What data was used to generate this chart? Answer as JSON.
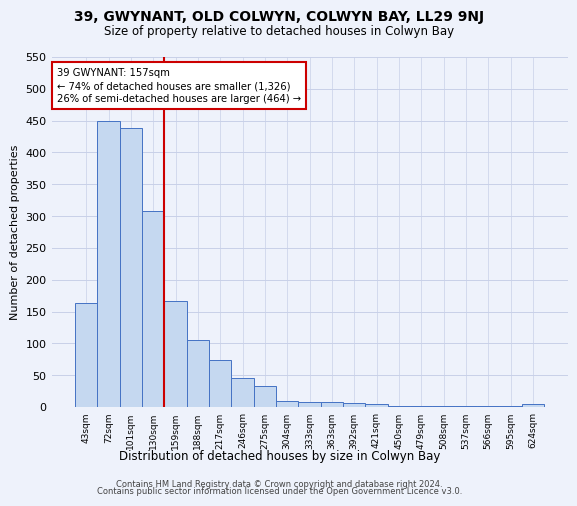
{
  "title": "39, GWYNANT, OLD COLWYN, COLWYN BAY, LL29 9NJ",
  "subtitle": "Size of property relative to detached houses in Colwyn Bay",
  "xlabel": "Distribution of detached houses by size in Colwyn Bay",
  "ylabel": "Number of detached properties",
  "footer_line1": "Contains HM Land Registry data © Crown copyright and database right 2024.",
  "footer_line2": "Contains public sector information licensed under the Open Government Licence v3.0.",
  "categories": [
    "43sqm",
    "72sqm",
    "101sqm",
    "130sqm",
    "159sqm",
    "188sqm",
    "217sqm",
    "246sqm",
    "275sqm",
    "304sqm",
    "333sqm",
    "363sqm",
    "392sqm",
    "421sqm",
    "450sqm",
    "479sqm",
    "508sqm",
    "537sqm",
    "566sqm",
    "595sqm",
    "624sqm"
  ],
  "values": [
    163,
    450,
    438,
    308,
    167,
    106,
    74,
    45,
    33,
    10,
    8,
    8,
    6,
    4,
    2,
    2,
    2,
    2,
    1,
    1,
    5
  ],
  "bar_color": "#c5d8f0",
  "bar_edge_color": "#4472c4",
  "background_color": "#eef2fb",
  "grid_color": "#c8d0e8",
  "vline_color": "#cc0000",
  "vline_x_index": 3.5,
  "annotation_text_line1": "39 GWYNANT: 157sqm",
  "annotation_text_line2": "← 74% of detached houses are smaller (1,326)",
  "annotation_text_line3": "26% of semi-detached houses are larger (464) →",
  "annotation_box_color": "#ffffff",
  "annotation_box_edge": "#cc0000",
  "ylim": [
    0,
    550
  ],
  "yticks": [
    0,
    50,
    100,
    150,
    200,
    250,
    300,
    350,
    400,
    450,
    500,
    550
  ]
}
